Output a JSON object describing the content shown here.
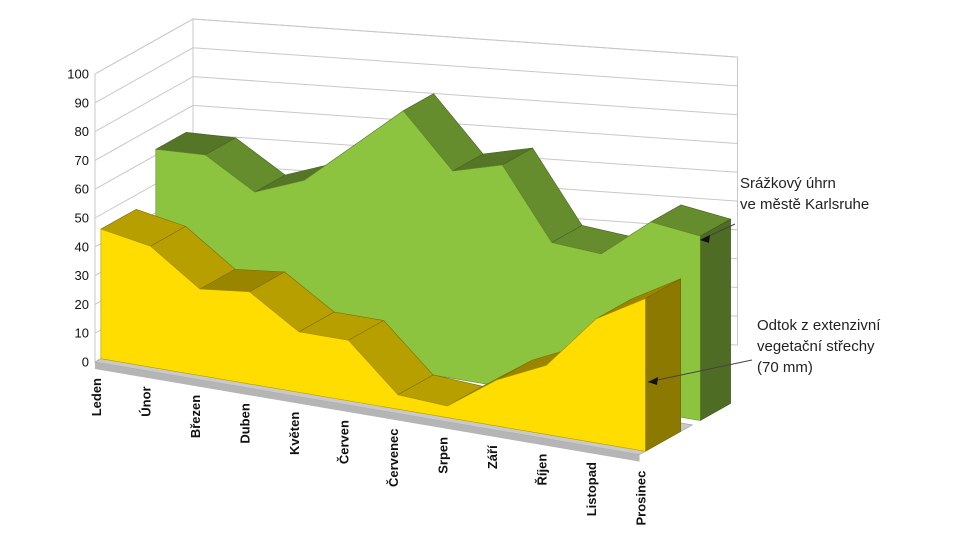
{
  "chart_data": {
    "type": "area",
    "categories": [
      "Leden",
      "Únor",
      "Březen",
      "Duben",
      "Květen",
      "Červen",
      "Červenec",
      "Srpen",
      "Září",
      "Říjen",
      "Listopad",
      "Prosinec"
    ],
    "ylim": [
      0,
      100
    ],
    "yticks": [
      "0",
      "10",
      "20",
      "30",
      "40",
      "50",
      "60",
      "70",
      "80",
      "90",
      "100"
    ],
    "grid": true,
    "series": [
      {
        "name": "Srážkový úhrn ve městě Karlsruhe",
        "legend_lines": [
          "Srážkový úhrn",
          "ve městě Karlsruhe"
        ],
        "values": [
          62,
          63,
          53,
          60,
          75,
          90,
          72,
          77,
          53,
          52,
          66,
          64
        ],
        "color": "#8dc43f"
      },
      {
        "name": "Odtok z extenzivní vegetační střechy (70 mm)",
        "legend_lines": [
          "Odtok z extenzivní",
          "vegetační střechy",
          "(70 mm)"
        ],
        "values": [
          45,
          42,
          30,
          32,
          21,
          21,
          5,
          4,
          16,
          24,
          43,
          53
        ],
        "color": "#ffdd00"
      }
    ]
  }
}
